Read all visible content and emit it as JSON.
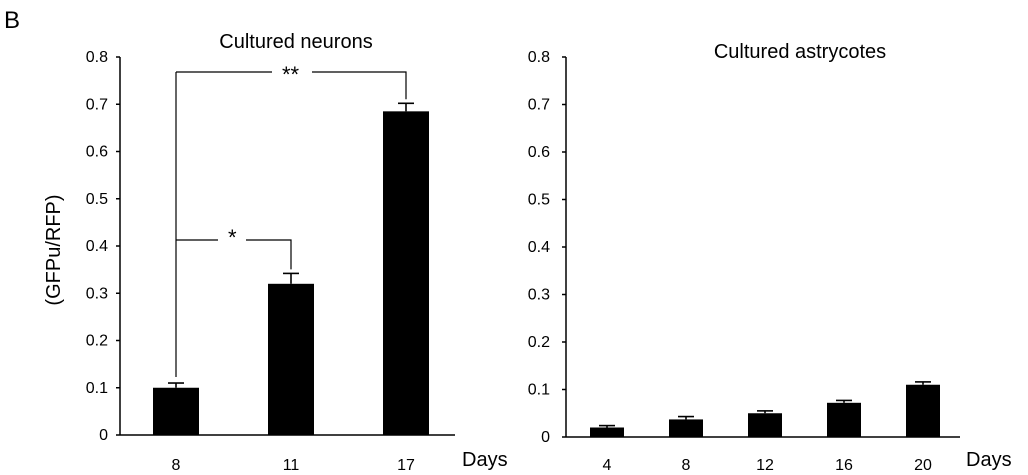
{
  "panel_label": "B",
  "y_axis_label": "(GFPu/RFP)",
  "chart_data": [
    {
      "type": "bar",
      "title": "Cultured neurons",
      "xlabel": "Days",
      "ylabel": "(GFPu/RFP)",
      "ylim": [
        0,
        0.8
      ],
      "yticks": [
        "0",
        "0.1",
        "0.2",
        "0.3",
        "0.4",
        "0.5",
        "0.6",
        "0.7",
        "0.8"
      ],
      "categories": [
        "8",
        "11",
        "17"
      ],
      "values": [
        0.1,
        0.32,
        0.685
      ],
      "errors": [
        0.01,
        0.022,
        0.017
      ],
      "grid": false,
      "bar_color": "#000000",
      "significance": [
        {
          "from": "8",
          "to": "11",
          "label": "*"
        },
        {
          "from": "8",
          "to": "17",
          "label": "**"
        }
      ]
    },
    {
      "type": "bar",
      "title": "Cultured astrycotes",
      "xlabel": "Days",
      "ylim": [
        0,
        0.8
      ],
      "yticks": [
        "0",
        "0.1",
        "0.2",
        "0.3",
        "0.4",
        "0.5",
        "0.6",
        "0.7",
        "0.8"
      ],
      "categories": [
        "4",
        "8",
        "12",
        "16",
        "20"
      ],
      "values": [
        0.02,
        0.037,
        0.05,
        0.072,
        0.11
      ],
      "errors": [
        0.004,
        0.006,
        0.005,
        0.005,
        0.006
      ],
      "grid": false,
      "bar_color": "#000000"
    }
  ]
}
